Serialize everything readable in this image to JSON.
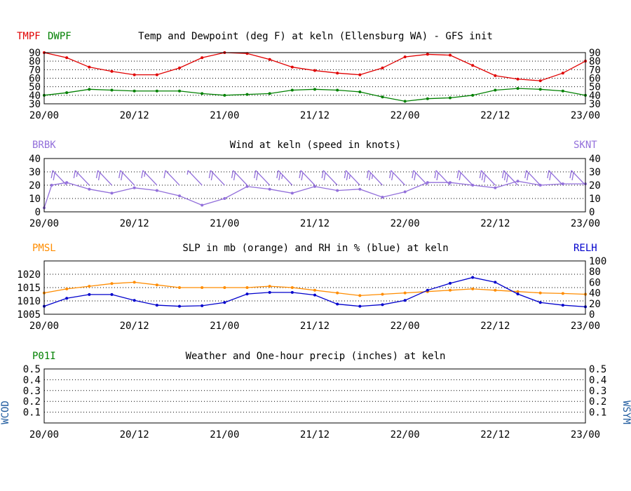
{
  "colors": {
    "temp": "#e00000",
    "dewp": "#008000",
    "wind": "#9370db",
    "slp": "#ff8c00",
    "rh": "#0000cc",
    "precip_label": "#008000",
    "wx_label": "#1e5a9e"
  },
  "chart_data": [
    {
      "type": "line",
      "title": "Temp and Dewpoint (deg F) at keln  (Ellensburg WA) - GFS init",
      "left_labels": [
        "TMPF",
        "DWPF"
      ],
      "x_ticks": [
        "20/00",
        "20/12",
        "21/00",
        "21/12",
        "22/00",
        "22/12",
        "23/00"
      ],
      "x_range": [
        0,
        72
      ],
      "ylim": [
        30,
        90
      ],
      "y_ticks": [
        30,
        40,
        50,
        60,
        70,
        80,
        90
      ],
      "series": [
        {
          "name": "TMPF",
          "color_key": "temp",
          "x": [
            0,
            3,
            6,
            9,
            12,
            15,
            18,
            21,
            24,
            27,
            30,
            33,
            36,
            39,
            42,
            45,
            48,
            51,
            54,
            57,
            60,
            63,
            66,
            69,
            72
          ],
          "values": [
            90,
            84,
            73,
            68,
            64,
            64,
            72,
            84,
            90,
            89,
            82,
            73,
            69,
            66,
            64,
            72,
            85,
            88,
            87,
            75,
            63,
            59,
            57,
            66,
            80
          ]
        },
        {
          "name": "DWPF",
          "color_key": "dewp",
          "x": [
            0,
            3,
            6,
            9,
            12,
            15,
            18,
            21,
            24,
            27,
            30,
            33,
            36,
            39,
            42,
            45,
            48,
            51,
            54,
            57,
            60,
            63,
            66,
            69,
            72
          ],
          "values": [
            40,
            43,
            47,
            46,
            45,
            45,
            45,
            42,
            40,
            41,
            42,
            46,
            47,
            46,
            44,
            38,
            33,
            36,
            37,
            40,
            46,
            48,
            47,
            45,
            40
          ]
        }
      ]
    },
    {
      "type": "line",
      "title": "Wind at  keln  (speed in knots)",
      "left_label": "BRBK",
      "right_label": "SKNT",
      "x_ticks": [
        "20/00",
        "20/12",
        "21/00",
        "21/12",
        "22/00",
        "22/12",
        "23/00"
      ],
      "x_range": [
        0,
        72
      ],
      "ylim": [
        0,
        40
      ],
      "y_ticks": [
        0,
        10,
        20,
        30,
        40
      ],
      "series": [
        {
          "name": "SKNT",
          "color_key": "wind",
          "x": [
            0,
            1,
            3,
            6,
            9,
            12,
            15,
            18,
            21,
            24,
            27,
            30,
            33,
            36,
            39,
            42,
            45,
            48,
            51,
            54,
            57,
            60,
            63,
            66,
            69,
            72
          ],
          "values": [
            3,
            20,
            22,
            17,
            14,
            18,
            16,
            12,
            5,
            10,
            19,
            17,
            14,
            19,
            16,
            17,
            11,
            15,
            22,
            22,
            20,
            18,
            23,
            20,
            21,
            21
          ]
        }
      ],
      "barbs": {
        "x": [
          3,
          6,
          9,
          12,
          15,
          18,
          21,
          24,
          27,
          30,
          33,
          36,
          39,
          42,
          45,
          48,
          51,
          54,
          57,
          60,
          63,
          66,
          69,
          72
        ],
        "speed": [
          23,
          18,
          20,
          21,
          18,
          12,
          8,
          20,
          22,
          21,
          25,
          23,
          21,
          28,
          26,
          22,
          21,
          24,
          22,
          30,
          33,
          24,
          22,
          22
        ]
      }
    },
    {
      "type": "line",
      "title": "SLP in mb (orange) and RH in % (blue) at  keln",
      "left_label": "PMSL",
      "right_label": "RELH",
      "x_ticks": [
        "20/00",
        "20/12",
        "21/00",
        "21/12",
        "22/00",
        "22/12",
        "23/00"
      ],
      "x_range": [
        0,
        72
      ],
      "ylim": [
        1005,
        1025
      ],
      "y_ticks": [
        1005,
        1010,
        1015,
        1020
      ],
      "ylim_right": [
        0,
        100
      ],
      "y_ticks_right": [
        0,
        20,
        40,
        60,
        80,
        100
      ],
      "series": [
        {
          "name": "PMSL",
          "axis": "left",
          "color_key": "slp",
          "x": [
            0,
            3,
            6,
            9,
            12,
            15,
            18,
            21,
            24,
            27,
            30,
            33,
            36,
            39,
            42,
            45,
            48,
            51,
            54,
            57,
            60,
            63,
            66,
            69,
            72
          ],
          "values": [
            1013,
            1014.5,
            1015.5,
            1016.5,
            1017,
            1016,
            1015,
            1015,
            1015,
            1015,
            1015.5,
            1015,
            1014,
            1013,
            1012,
            1012.5,
            1013,
            1013.5,
            1014,
            1014.5,
            1014,
            1013.5,
            1013,
            1012.8,
            1012.5
          ]
        },
        {
          "name": "RELH",
          "axis": "right",
          "color_key": "rh",
          "x": [
            0,
            3,
            6,
            9,
            12,
            15,
            18,
            21,
            24,
            27,
            30,
            33,
            36,
            39,
            42,
            45,
            48,
            51,
            54,
            57,
            60,
            63,
            66,
            69,
            72
          ],
          "values": [
            15,
            30,
            37,
            37,
            26,
            17,
            15,
            16,
            22,
            38,
            41,
            41,
            36,
            19,
            15,
            18,
            26,
            45,
            58,
            69,
            60,
            38,
            22,
            17,
            14
          ]
        }
      ]
    },
    {
      "type": "line",
      "title": "Weather and One-hour precip (inches) at  keln",
      "left_label": "P01I",
      "left_side_label": "WCOD",
      "right_side_label": "WSYM",
      "x_ticks": [
        "20/00",
        "20/12",
        "21/00",
        "21/12",
        "22/00",
        "22/12",
        "23/00"
      ],
      "x_range": [
        0,
        72
      ],
      "ylim": [
        0,
        0.5
      ],
      "y_ticks": [
        "0.1",
        "0.2",
        "0.3",
        "0.4",
        "0.5"
      ],
      "series": []
    }
  ]
}
